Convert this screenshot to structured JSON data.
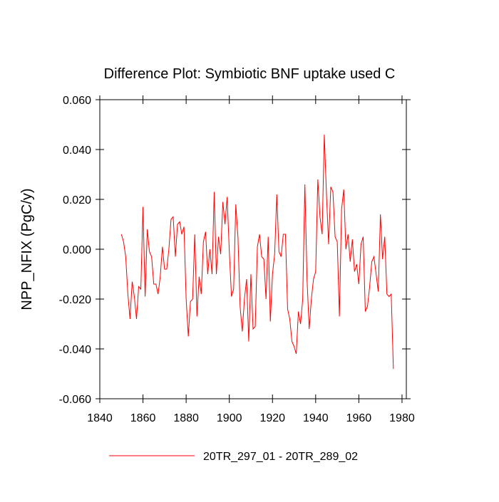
{
  "chart_data": {
    "type": "line",
    "title": "Difference Plot: Symbiotic BNF uptake used C",
    "y_label": "NPP_NFIX  (PgC/y)",
    "xlim": [
      1840,
      1982
    ],
    "ylim": [
      -0.06,
      0.06
    ],
    "xticks": [
      1840,
      1860,
      1880,
      1900,
      1920,
      1940,
      1960,
      1980
    ],
    "yticks": [
      {
        "value": -0.06,
        "label": "-0.060"
      },
      {
        "value": -0.04,
        "label": "-0.040"
      },
      {
        "value": -0.02,
        "label": "-0.020"
      },
      {
        "value": 0,
        "label": "0.000"
      },
      {
        "value": 0.02,
        "label": "0.020"
      },
      {
        "value": 0.04,
        "label": "0.040"
      },
      {
        "value": 0.06,
        "label": "0.060"
      }
    ],
    "x": [
      1850,
      1851,
      1852,
      1853,
      1854,
      1855,
      1856,
      1857,
      1858,
      1859,
      1860,
      1861,
      1862,
      1863,
      1864,
      1865,
      1866,
      1867,
      1868,
      1869,
      1870,
      1871,
      1872,
      1873,
      1874,
      1875,
      1876,
      1877,
      1878,
      1879,
      1880,
      1881,
      1882,
      1883,
      1884,
      1885,
      1886,
      1887,
      1888,
      1889,
      1890,
      1891,
      1892,
      1893,
      1894,
      1895,
      1896,
      1897,
      1898,
      1899,
      1900,
      1901,
      1902,
      1903,
      1904,
      1905,
      1906,
      1907,
      1908,
      1909,
      1910,
      1911,
      1912,
      1913,
      1914,
      1915,
      1916,
      1917,
      1918,
      1919,
      1920,
      1921,
      1922,
      1923,
      1924,
      1925,
      1926,
      1927,
      1928,
      1929,
      1930,
      1931,
      1932,
      1933,
      1934,
      1935,
      1936,
      1937,
      1938,
      1939,
      1940,
      1941,
      1942,
      1943,
      1944,
      1945,
      1946,
      1947,
      1948,
      1949,
      1950,
      1951,
      1952,
      1953,
      1954,
      1955,
      1956,
      1957,
      1958,
      1959,
      1960,
      1961,
      1962,
      1963,
      1964,
      1965,
      1966,
      1967,
      1968,
      1969,
      1970,
      1971,
      1972,
      1973,
      1974,
      1975,
      1976
    ],
    "series": [
      {
        "name": "20TR_297_01 - 20TR_289_02",
        "color": "#ff0000",
        "values": [
          0.006,
          0.003,
          -0.003,
          -0.018,
          -0.028,
          -0.013,
          -0.019,
          -0.028,
          -0.015,
          -0.016,
          0.017,
          -0.019,
          0.008,
          -0.001,
          -0.003,
          -0.014,
          -0.014,
          -0.018,
          -0.011,
          0.001,
          -0.008,
          -0.008,
          0.0,
          0.012,
          0.013,
          -0.003,
          0.01,
          0.011,
          0.006,
          0.009,
          -0.02,
          -0.035,
          -0.021,
          -0.02,
          0.006,
          -0.027,
          -0.011,
          -0.018,
          0.003,
          0.007,
          -0.01,
          0.0,
          -0.01,
          0.023,
          -0.01,
          0.005,
          -0.002,
          0.019,
          0.01,
          0.021,
          -0.001,
          -0.019,
          -0.016,
          0.018,
          0.005,
          -0.023,
          -0.033,
          -0.02,
          -0.012,
          -0.037,
          -0.01,
          -0.032,
          -0.031,
          0.001,
          0.006,
          -0.003,
          -0.004,
          -0.02,
          0.005,
          -0.029,
          -0.01,
          -0.002,
          0.022,
          -0.001,
          -0.003,
          0.006,
          0.006,
          -0.024,
          -0.028,
          -0.037,
          -0.039,
          -0.042,
          -0.025,
          -0.03,
          -0.02,
          0.026,
          -0.012,
          -0.032,
          -0.02,
          -0.012,
          -0.009,
          0.028,
          0.013,
          0.006,
          0.046,
          0.022,
          0.002,
          0.025,
          0.023,
          0.005,
          0.003,
          -0.027,
          0.016,
          0.024,
          0.0,
          0.006,
          -0.005,
          0.004,
          -0.009,
          -0.006,
          -0.014,
          0.002,
          0.005,
          -0.025,
          -0.023,
          -0.015,
          -0.005,
          -0.003,
          -0.01,
          -0.017,
          0.014,
          -0.004,
          0.005,
          -0.018,
          -0.019,
          -0.018,
          -0.048
        ]
      }
    ]
  }
}
